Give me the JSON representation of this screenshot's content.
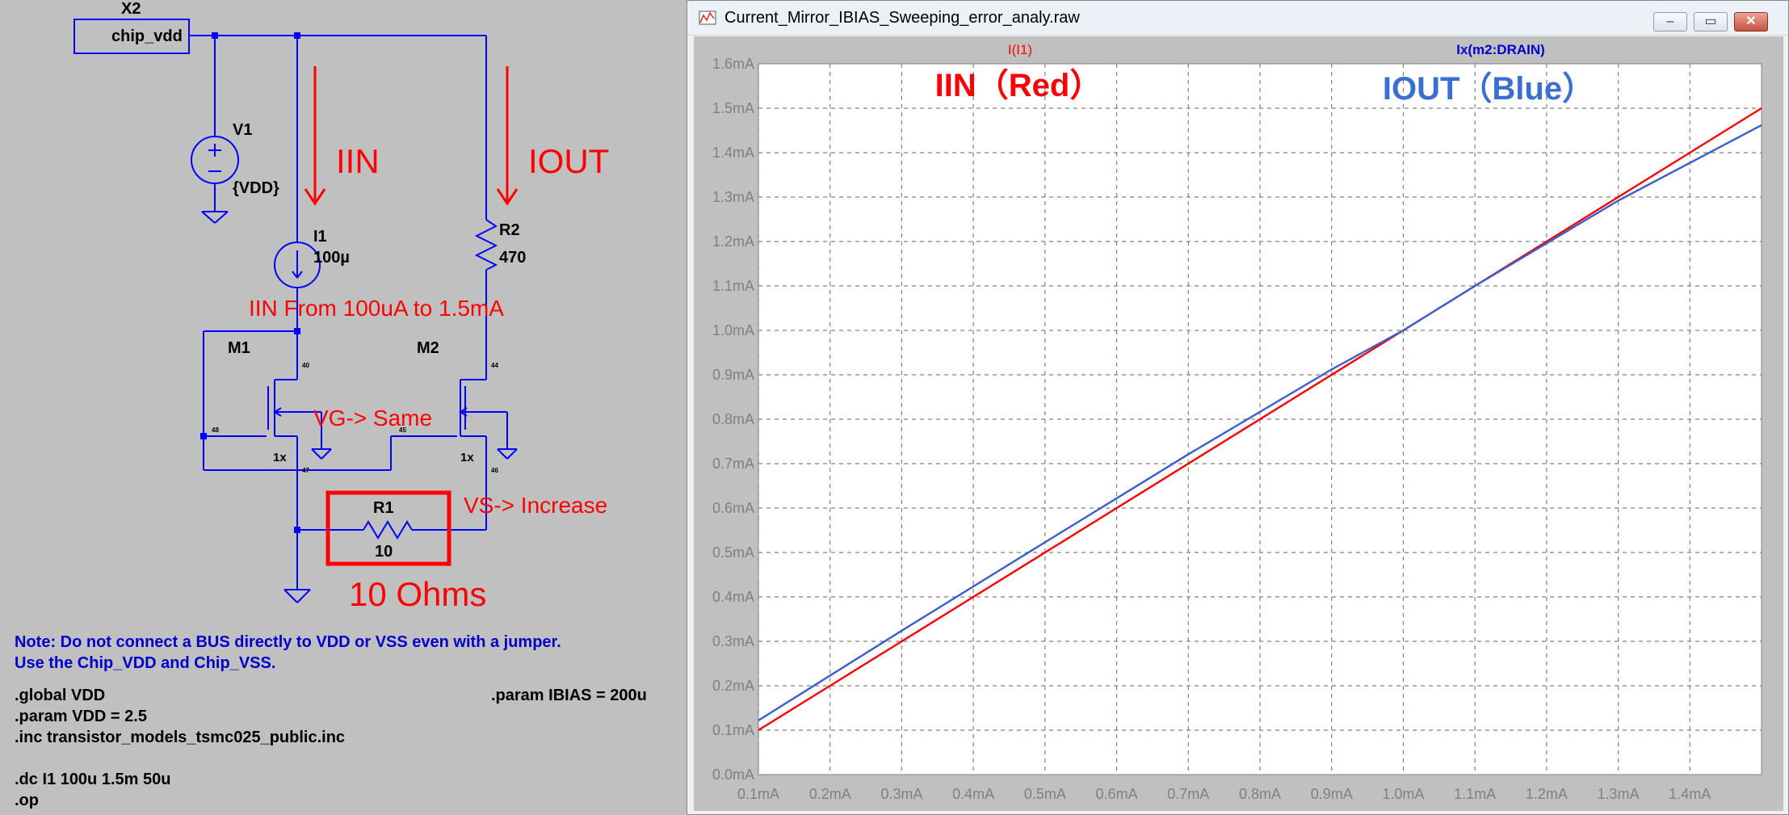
{
  "schematic": {
    "components": {
      "x2_ref": "X2",
      "x2_value": "chip_vdd",
      "v1_ref": "V1",
      "v1_value": "{VDD}",
      "i1_ref": "I1",
      "i1_value": "100µ",
      "r2_ref": "R2",
      "r2_value": "470",
      "m1_ref": "M1",
      "m2_ref": "M2",
      "m1_mult": "1x",
      "m2_mult": "1x",
      "r1_ref": "R1",
      "r1_value": "10"
    },
    "pins": {
      "p40": "40",
      "p44": "44",
      "p48": "48",
      "p45": "45",
      "p47": "47",
      "p46": "46"
    },
    "annotations": {
      "iin": "IIN",
      "iout": "IOUT",
      "iin_sweep": "IIN From 100uA to 1.5mA",
      "vg": "VG-> Same",
      "vs": "VS-> Increase",
      "r1_ohms": "10 Ohms"
    },
    "note_line1": "Note: Do not connect a BUS directly to VDD or VSS even with a jumper.",
    "note_line2": "Use the Chip_VDD and Chip_VSS.",
    "directives": {
      "global": ".global VDD",
      "param_vdd": ".param VDD = 2.5",
      "inc": ".inc transistor_models_tsmc025_public.inc",
      "dc": ".dc I1 100u 1.5m 50u",
      "op": ".op",
      "param_ibias": ".param IBIAS = 200u"
    },
    "colors": {
      "wire": "#0000ff",
      "annotation": "#ff0000",
      "note": "#0000cc",
      "background": "#c0c0c0"
    }
  },
  "window": {
    "title": "Current_Mirror_IBIAS_Sweeping_error_analy.raw",
    "minimize_icon": "minimize-icon",
    "maximize_icon": "maximize-icon",
    "close_icon": "close-icon"
  },
  "plot": {
    "trace_red_name": "I(I1)",
    "trace_blue_name": "Ix(m2:DRAIN)",
    "annot_red": "IIN（Red）",
    "annot_blue": "IOUT（Blue）",
    "colors": {
      "red": "#ff0000",
      "blue": "#3a5fcd",
      "grid": "#808080",
      "tick_label": "#808080"
    }
  },
  "chart_data": {
    "type": "line",
    "x_unit": "mA",
    "xlim": [
      0.1,
      1.5
    ],
    "ylim": [
      0.0,
      1.6
    ],
    "x_ticks": [
      "0.1mA",
      "0.2mA",
      "0.3mA",
      "0.4mA",
      "0.5mA",
      "0.6mA",
      "0.7mA",
      "0.8mA",
      "0.9mA",
      "1.0mA",
      "1.1mA",
      "1.2mA",
      "1.3mA",
      "1.4mA"
    ],
    "y_ticks": [
      "0.0mA",
      "0.1mA",
      "0.2mA",
      "0.3mA",
      "0.4mA",
      "0.5mA",
      "0.6mA",
      "0.7mA",
      "0.8mA",
      "0.9mA",
      "1.0mA",
      "1.1mA",
      "1.2mA",
      "1.3mA",
      "1.4mA",
      "1.5mA",
      "1.6mA"
    ],
    "grid": true,
    "series": [
      {
        "name": "I(I1)",
        "color": "#ff0000",
        "x": [
          0.1,
          1.5
        ],
        "y": [
          0.1,
          1.5
        ]
      },
      {
        "name": "Ix(m2:DRAIN)",
        "color": "#3a5fcd",
        "x": [
          0.1,
          0.3,
          0.5,
          0.7,
          0.9,
          1.0,
          1.1,
          1.3,
          1.5
        ],
        "y": [
          0.122,
          0.324,
          0.523,
          0.721,
          0.912,
          1.0,
          1.1,
          1.292,
          1.462
        ]
      }
    ]
  }
}
